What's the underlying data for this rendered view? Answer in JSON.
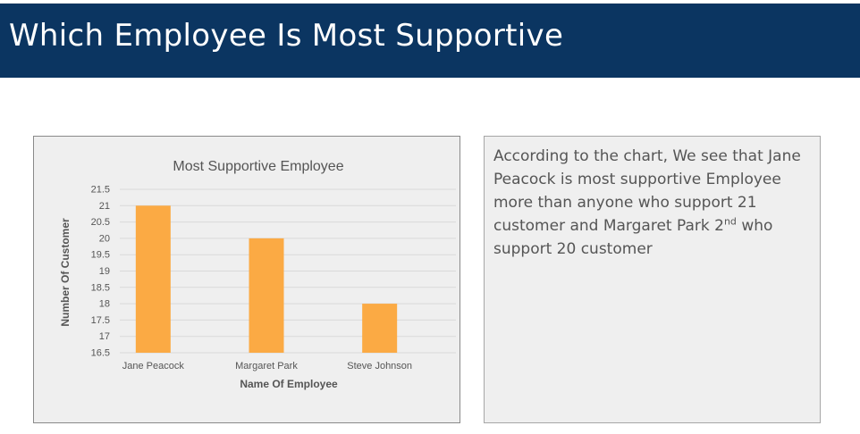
{
  "slide": {
    "title": "Which Employee Is Most Supportive",
    "colors": {
      "header_bg": "#0b3561",
      "bar": "#fbaa44"
    }
  },
  "description": {
    "part1": "According to the chart, We see that Jane Peacock is most supportive Employee more than anyone who support 21 customer and Margaret Park ",
    "ordinal_number": "2",
    "ordinal_suffix": "nd",
    "part2": " who support 20 customer"
  },
  "chart_data": {
    "type": "bar",
    "title": "Most Supportive Employee",
    "xlabel": "Name Of Employee",
    "ylabel": "Number Of Customer",
    "categories": [
      "Jane Peacock",
      "Margaret Park",
      "Steve Johnson"
    ],
    "values": [
      21,
      20,
      18
    ],
    "ylim": [
      16.5,
      21.5
    ],
    "yticks": [
      "16.5",
      "17",
      "17.5",
      "18",
      "18.5",
      "19",
      "19.5",
      "20",
      "20.5",
      "21",
      "21.5"
    ],
    "grid": true,
    "legend": false
  }
}
